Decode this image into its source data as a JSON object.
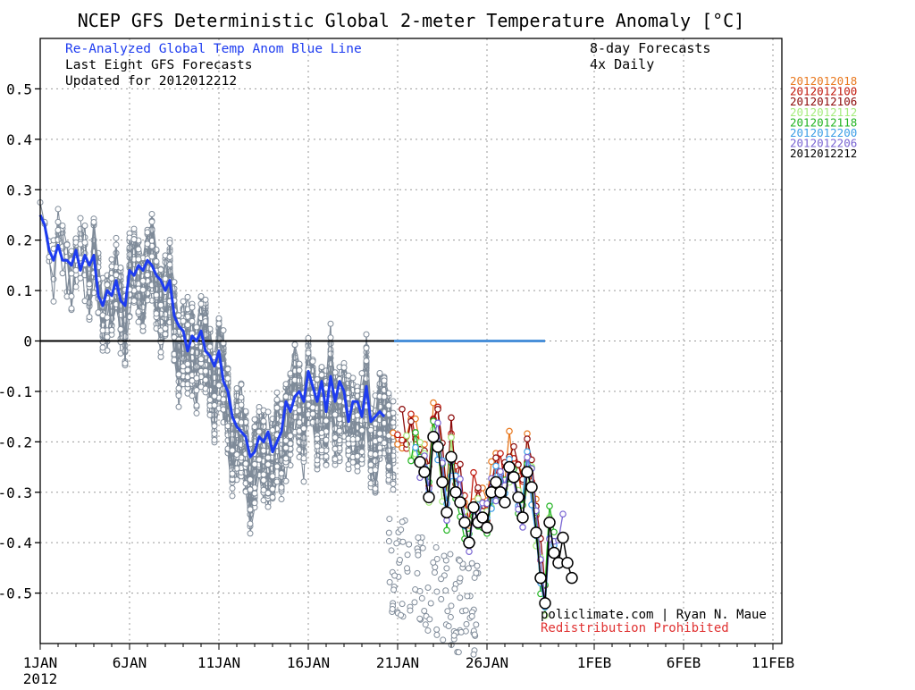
{
  "chart_data": {
    "type": "line",
    "title": "NCEP GFS Deterministic Global 2-meter Temperature Anomaly [°C]",
    "header_left": [
      "Re-Analyzed Global Temp Anom Blue Line",
      "Last Eight GFS Forecasts",
      "Updated for 2012012212"
    ],
    "header_right": [
      "8-day Forecasts",
      "4x Daily"
    ],
    "credit": "policlimate.com | Ryan N. Maue",
    "notice": "Redistribution Prohibited",
    "x_ticks": [
      "1JAN",
      "6JAN",
      "11JAN",
      "16JAN",
      "21JAN",
      "26JAN",
      "1FEB",
      "6FEB",
      "11FEB"
    ],
    "x_year": "2012",
    "xlim": [
      0,
      41.5
    ],
    "y_ticks": [
      "0.5",
      "0.4",
      "0.3",
      "0.2",
      "0.1",
      "0",
      "-0.1",
      "-0.2",
      "-0.3",
      "-0.4",
      "-0.5"
    ],
    "ylim": [
      -0.6,
      0.6
    ],
    "grid": true,
    "legend_placement": "right, outside plot",
    "legend": [
      {
        "label": "2012012018",
        "color": "#e8781e"
      },
      {
        "label": "2012012100",
        "color": "#c0180c"
      },
      {
        "label": "2012012106",
        "color": "#8c0a0a"
      },
      {
        "label": "2012012112",
        "color": "#a6ec7e"
      },
      {
        "label": "2012012118",
        "color": "#22b422"
      },
      {
        "label": "2012012200",
        "color": "#3c9ee6"
      },
      {
        "label": "2012012206",
        "color": "#7864d2"
      },
      {
        "label": "2012012212",
        "color": "#000000"
      }
    ],
    "reanalysis": {
      "name": "Re-Analyzed Global Temp Anom",
      "color": "#1e3cf0",
      "x": [
        0,
        0.25,
        0.5,
        0.75,
        1,
        1.25,
        1.5,
        1.75,
        2,
        2.25,
        2.5,
        2.75,
        3,
        3.25,
        3.5,
        3.75,
        4,
        4.25,
        4.5,
        4.75,
        5,
        5.25,
        5.5,
        5.75,
        6,
        6.25,
        6.5,
        6.75,
        7,
        7.25,
        7.5,
        7.75,
        8,
        8.25,
        8.5,
        8.75,
        9,
        9.25,
        9.5,
        9.75,
        10,
        10.25,
        10.5,
        10.75,
        11,
        11.25,
        11.5,
        11.75,
        12,
        12.25,
        12.5,
        12.75,
        13,
        13.25,
        13.5,
        13.75,
        14,
        14.25,
        14.5,
        14.75,
        15,
        15.25,
        15.5,
        15.75,
        16,
        16.25,
        16.5,
        16.75,
        17,
        17.25,
        17.5,
        17.75,
        18,
        18.25,
        18.5,
        18.75,
        19,
        19.25
      ],
      "y": [
        0.25,
        0.23,
        0.18,
        0.16,
        0.19,
        0.16,
        0.16,
        0.15,
        0.18,
        0.14,
        0.17,
        0.15,
        0.17,
        0.09,
        0.07,
        0.1,
        0.09,
        0.12,
        0.08,
        0.07,
        0.14,
        0.13,
        0.15,
        0.14,
        0.16,
        0.15,
        0.13,
        0.12,
        0.1,
        0.12,
        0.05,
        0.03,
        0.02,
        -0.02,
        0.01,
        0.0,
        0.02,
        -0.02,
        -0.03,
        -0.05,
        -0.02,
        -0.08,
        -0.1,
        -0.15,
        -0.17,
        -0.18,
        -0.19,
        -0.23,
        -0.22,
        -0.19,
        -0.2,
        -0.18,
        -0.22,
        -0.2,
        -0.18,
        -0.12,
        -0.14,
        -0.11,
        -0.1,
        -0.12,
        -0.06,
        -0.09,
        -0.12,
        -0.08,
        -0.14,
        -0.07,
        -0.12,
        -0.08,
        -0.1,
        -0.16,
        -0.12,
        -0.12,
        -0.15,
        -0.09,
        -0.16,
        -0.15,
        -0.14,
        -0.15
      ]
    },
    "forecast_2012012212": {
      "x": [
        21.25,
        21.5,
        21.75,
        22,
        22.25,
        22.5,
        22.75,
        23,
        23.25,
        23.5,
        23.75,
        24,
        24.25,
        24.5,
        24.75,
        25,
        25.25,
        25.5,
        25.75,
        26,
        26.25,
        26.5,
        26.75,
        27,
        27.25,
        27.5,
        27.75,
        28,
        28.25,
        28.5,
        28.75,
        29,
        29.25,
        29.5,
        29.75
      ],
      "y": [
        -0.24,
        -0.26,
        -0.31,
        -0.19,
        -0.21,
        -0.28,
        -0.34,
        -0.23,
        -0.3,
        -0.32,
        -0.36,
        -0.4,
        -0.33,
        -0.36,
        -0.35,
        -0.37,
        -0.3,
        -0.28,
        -0.3,
        -0.32,
        -0.25,
        -0.27,
        -0.31,
        -0.35,
        -0.26,
        -0.29,
        -0.38,
        -0.47,
        -0.52,
        -0.36,
        -0.42,
        -0.44,
        -0.39,
        -0.44,
        -0.47
      ]
    },
    "spaghetti_note": "dense gray dots are earlier GFS runs"
  }
}
